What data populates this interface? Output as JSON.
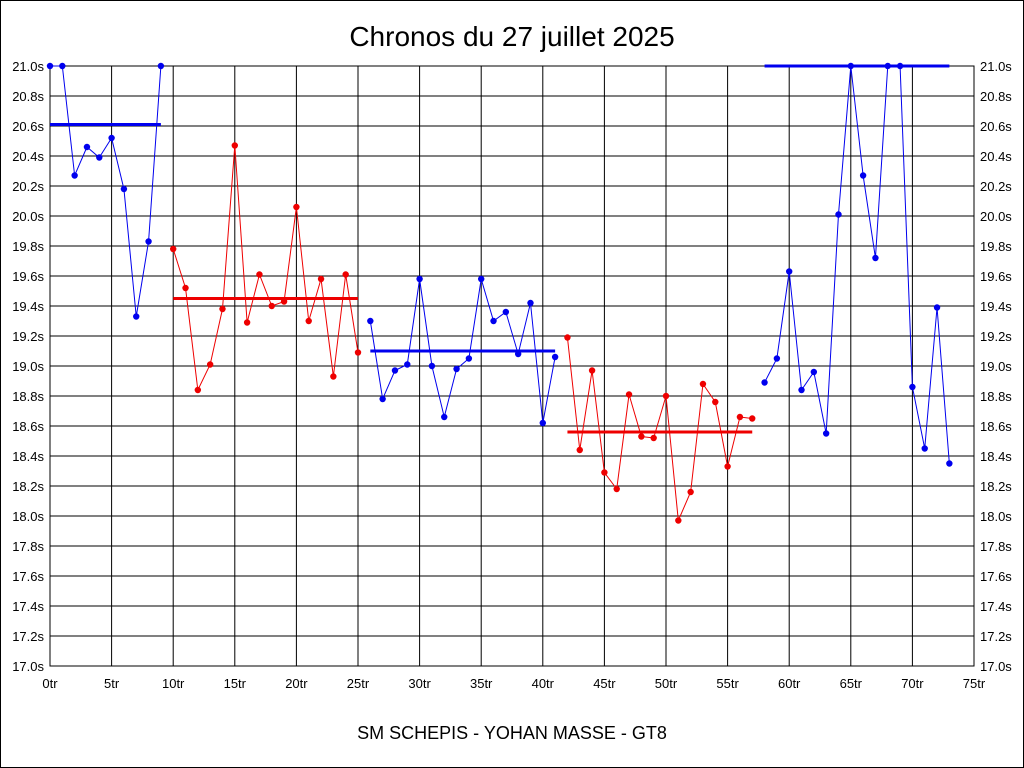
{
  "chart_data": {
    "type": "line",
    "title": "Chronos du 27 juillet 2025",
    "subtitle": "SM SCHEPIS - YOHAN MASSE - GT8",
    "x_ticks": [
      "0tr",
      "5tr",
      "10tr",
      "15tr",
      "20tr",
      "25tr",
      "30tr",
      "35tr",
      "40tr",
      "45tr",
      "50tr",
      "55tr",
      "60tr",
      "65tr",
      "70tr",
      "75tr"
    ],
    "y_ticks": [
      "17.0s",
      "17.2s",
      "17.4s",
      "17.6s",
      "17.8s",
      "18.0s",
      "18.2s",
      "18.4s",
      "18.6s",
      "18.8s",
      "19.0s",
      "19.2s",
      "19.4s",
      "19.6s",
      "19.8s",
      "20.0s",
      "20.2s",
      "20.4s",
      "20.6s",
      "20.8s",
      "21.0s"
    ],
    "xlim": [
      0,
      75
    ],
    "ylim": [
      17.0,
      21.0
    ],
    "grid": true,
    "colors": {
      "blue": "#0000ee",
      "red": "#ee0000",
      "grid": "#000000"
    },
    "series": [
      {
        "color": "blue",
        "points": [
          [
            0,
            21.0
          ],
          [
            1,
            21.0
          ],
          [
            2,
            20.27
          ],
          [
            3,
            20.46
          ],
          [
            4,
            20.39
          ],
          [
            5,
            20.52
          ],
          [
            6,
            20.18
          ],
          [
            7,
            19.33
          ],
          [
            8,
            19.83
          ],
          [
            9,
            21.0
          ]
        ],
        "average": 20.61
      },
      {
        "color": "red",
        "points": [
          [
            10,
            19.78
          ],
          [
            11,
            19.52
          ],
          [
            12,
            18.84
          ],
          [
            13,
            19.01
          ],
          [
            14,
            19.38
          ],
          [
            15,
            20.47
          ],
          [
            16,
            19.29
          ],
          [
            17,
            19.61
          ],
          [
            18,
            19.4
          ],
          [
            19,
            19.43
          ],
          [
            20,
            20.06
          ],
          [
            21,
            19.3
          ],
          [
            22,
            19.58
          ],
          [
            23,
            18.93
          ],
          [
            24,
            19.61
          ],
          [
            25,
            19.09
          ]
        ],
        "average": 19.45
      },
      {
        "color": "blue",
        "points": [
          [
            26,
            19.3
          ],
          [
            27,
            18.78
          ],
          [
            28,
            18.97
          ],
          [
            29,
            19.01
          ],
          [
            30,
            19.58
          ],
          [
            31,
            19.0
          ],
          [
            32,
            18.66
          ],
          [
            33,
            18.98
          ],
          [
            34,
            19.05
          ],
          [
            35,
            19.58
          ],
          [
            36,
            19.3
          ],
          [
            37,
            19.36
          ],
          [
            38,
            19.08
          ],
          [
            39,
            19.42
          ],
          [
            40,
            18.62
          ],
          [
            41,
            19.06
          ]
        ],
        "average": 19.1
      },
      {
        "color": "red",
        "points": [
          [
            42,
            19.19
          ],
          [
            43,
            18.44
          ],
          [
            44,
            18.97
          ],
          [
            45,
            18.29
          ],
          [
            46,
            18.18
          ],
          [
            47,
            18.81
          ],
          [
            48,
            18.53
          ],
          [
            49,
            18.52
          ],
          [
            50,
            18.8
          ],
          [
            51,
            17.97
          ],
          [
            52,
            18.16
          ],
          [
            53,
            18.88
          ],
          [
            54,
            18.76
          ],
          [
            55,
            18.33
          ],
          [
            56,
            18.66
          ],
          [
            57,
            18.65
          ]
        ],
        "average": 18.56
      },
      {
        "color": "blue",
        "points": [
          [
            58,
            18.89
          ],
          [
            59,
            19.05
          ],
          [
            60,
            19.63
          ],
          [
            61,
            18.84
          ],
          [
            62,
            18.96
          ],
          [
            63,
            18.55
          ],
          [
            64,
            20.01
          ],
          [
            65,
            21.0
          ],
          [
            66,
            20.27
          ],
          [
            67,
            19.72
          ],
          [
            68,
            21.0
          ],
          [
            69,
            21.0
          ],
          [
            70,
            18.86
          ],
          [
            71,
            18.45
          ],
          [
            72,
            19.39
          ],
          [
            73,
            18.35
          ]
        ],
        "average": 21.0
      }
    ]
  }
}
